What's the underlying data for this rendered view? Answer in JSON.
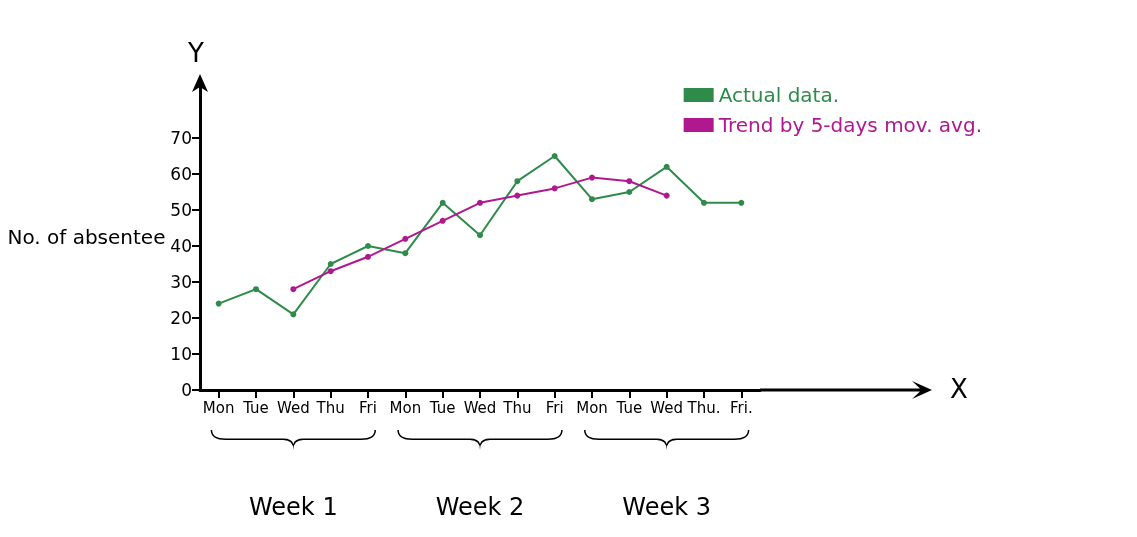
{
  "chart_data": {
    "type": "line",
    "ylabel": "No. of absentee",
    "categories": [
      "Mon",
      "Tue",
      "Wed",
      "Thu",
      "Fri",
      "Mon",
      "Tue",
      "Wed",
      "Thu",
      "Fri",
      "Mon",
      "Tue",
      "Wed",
      "Thu.",
      "Fri."
    ],
    "series": [
      {
        "name": "Actual data.",
        "color": "#2e8b4a",
        "values": [
          24,
          28,
          21,
          35,
          40,
          38,
          52,
          43,
          58,
          65,
          53,
          55,
          62,
          52,
          52
        ]
      },
      {
        "name": "Trend by 5-days mov. avg.",
        "color": "#b0188f",
        "values": [
          null,
          null,
          28,
          33,
          37,
          42,
          47,
          52,
          54,
          56,
          59,
          58,
          54,
          null,
          null
        ]
      }
    ],
    "ylim": [
      0,
      85
    ],
    "yticks": [
      0,
      10,
      20,
      30,
      40,
      50,
      60,
      70
    ],
    "grid": false,
    "legend": "top right",
    "marker": "circle",
    "line_style": "solid",
    "annotations": [
      "Y",
      "X",
      "Week 1",
      "Week 2",
      "Week 3"
    ]
  }
}
